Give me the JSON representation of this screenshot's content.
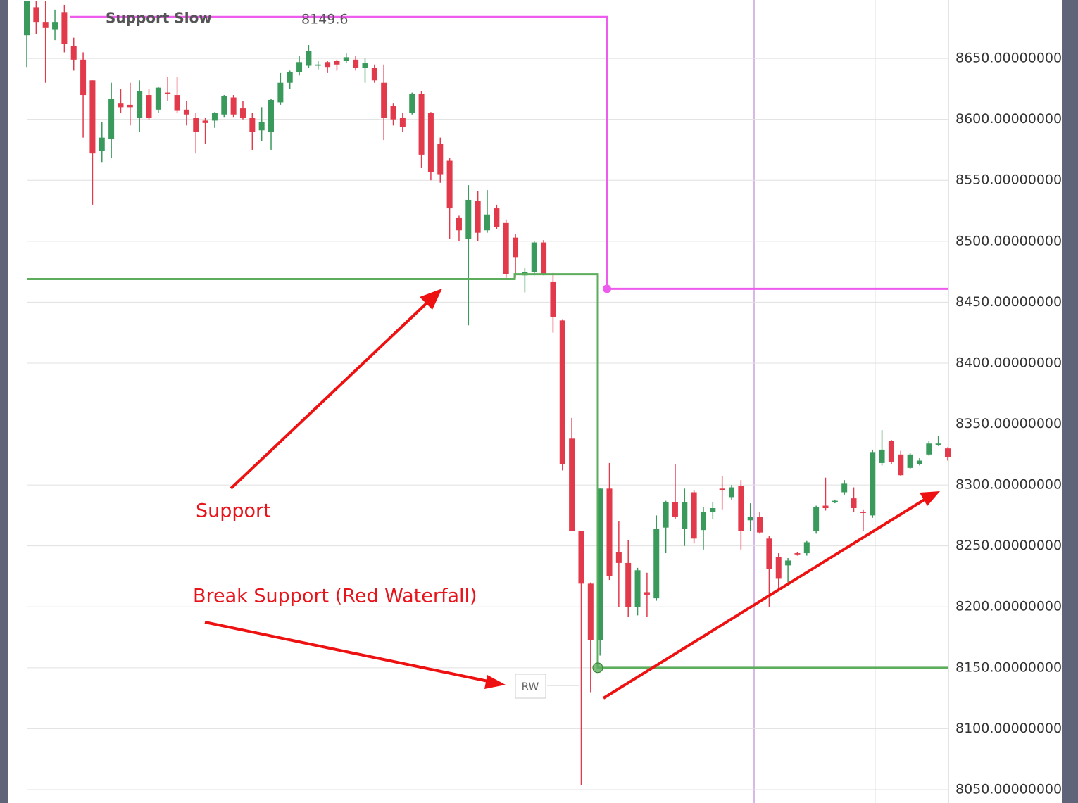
{
  "chart_data": {
    "type": "candlestick",
    "legend_label": "Support Slow",
    "legend_value": "8149.6",
    "annotations": [
      "Support",
      "Break Support (Red Waterfall)",
      "RW"
    ],
    "up_color": "#3a9a5c",
    "down_color": "#e2394b",
    "ylim": [
      8039,
      8698
    ],
    "yticks": [
      {
        "value": 8650,
        "label": "8650.00000000"
      },
      {
        "value": 8600,
        "label": "8600.00000000"
      },
      {
        "value": 8550,
        "label": "8550.00000000"
      },
      {
        "value": 8500,
        "label": "8500.00000000"
      },
      {
        "value": 8450,
        "label": "8450.00000000"
      },
      {
        "value": 8400,
        "label": "8400.00000000"
      },
      {
        "value": 8350,
        "label": "8350.00000000"
      },
      {
        "value": 8300,
        "label": "8300.00000000"
      },
      {
        "value": 8250,
        "label": "8250.00000000"
      },
      {
        "value": 8200,
        "label": "8200.00000000"
      },
      {
        "value": 8150,
        "label": "8150.00000000"
      },
      {
        "value": 8100,
        "label": "8100.00000000"
      },
      {
        "value": 8050,
        "label": "8050.00000000"
      }
    ],
    "grid": true,
    "open": [
      8669,
      8692,
      8680,
      8674,
      8688,
      8660,
      8649,
      8632,
      8574,
      8584,
      8613,
      8612,
      8601,
      8620,
      8608,
      8622,
      8620,
      8608,
      8601,
      8599,
      8599,
      8604,
      8618,
      8609,
      8601,
      8591,
      8590,
      8614,
      8630,
      8639,
      8644,
      8644,
      8647,
      8648,
      8648,
      8649,
      8642,
      8642,
      8630,
      8611,
      8601,
      8605,
      8621,
      8605,
      8580,
      8566,
      8519,
      8502,
      8533,
      8509,
      8527,
      8515,
      8503,
      8472,
      8475,
      8499,
      8467,
      8435,
      8338,
      8262,
      8219,
      8173,
      8297,
      8245,
      8236,
      8200,
      8212,
      8207,
      8265,
      8286,
      8264,
      8294,
      8263,
      8278,
      8297,
      8290,
      8299,
      8271,
      8274,
      8256,
      8241,
      8234,
      8244,
      8244,
      8262,
      8283,
      8286,
      8294,
      8289,
      8278,
      8275,
      8318,
      8336,
      8325,
      8314,
      8317,
      8325,
      8333,
      8330
    ],
    "high": [
      8697,
      8697,
      8697,
      8690,
      8694,
      8667,
      8655,
      8632,
      8598,
      8630,
      8625,
      8630,
      8632,
      8625,
      8627,
      8635,
      8635,
      8615,
      8605,
      8601,
      8606,
      8620,
      8620,
      8615,
      8605,
      8610,
      8617,
      8638,
      8640,
      8652,
      8661,
      8648,
      8648,
      8649,
      8654,
      8652,
      8650,
      8645,
      8645,
      8613,
      8605,
      8622,
      8623,
      8606,
      8585,
      8568,
      8521,
      8546,
      8541,
      8542,
      8530,
      8518,
      8506,
      8478,
      8500,
      8501,
      8474,
      8436,
      8355,
      8262,
      8220,
      8297,
      8318,
      8270,
      8255,
      8232,
      8228,
      8275,
      8287,
      8317,
      8297,
      8296,
      8282,
      8286,
      8307,
      8300,
      8304,
      8285,
      8278,
      8258,
      8244,
      8240,
      8245,
      8254,
      8283,
      8306,
      8288,
      8304,
      8298,
      8280,
      8329,
      8345,
      8337,
      8328,
      8326,
      8322,
      8336,
      8340,
      8331
    ],
    "low": [
      8643,
      8670,
      8630,
      8665,
      8655,
      8640,
      8585,
      8530,
      8565,
      8568,
      8605,
      8595,
      8590,
      8600,
      8605,
      8615,
      8605,
      8595,
      8572,
      8580,
      8593,
      8602,
      8602,
      8600,
      8575,
      8582,
      8575,
      8612,
      8625,
      8636,
      8642,
      8641,
      8638,
      8640,
      8646,
      8640,
      8630,
      8630,
      8583,
      8595,
      8590,
      8604,
      8560,
      8550,
      8548,
      8502,
      8500,
      8431,
      8500,
      8507,
      8510,
      8470,
      8470,
      8458,
      8472,
      8472,
      8425,
      8312,
      8262,
      8054,
      8130,
      8160,
      8222,
      8200,
      8192,
      8193,
      8192,
      8205,
      8244,
      8272,
      8250,
      8252,
      8247,
      8272,
      8280,
      8288,
      8247,
      8262,
      8260,
      8200,
      8215,
      8220,
      8242,
      8242,
      8260,
      8279,
      8285,
      8292,
      8278,
      8262,
      8273,
      8316,
      8317,
      8307,
      8313,
      8316,
      8324,
      8332,
      8320
    ],
    "close": [
      8697,
      8680,
      8675,
      8680,
      8662,
      8649,
      8620,
      8572,
      8585,
      8617,
      8610,
      8610,
      8623,
      8601,
      8626,
      8621,
      8607,
      8604,
      8590,
      8597,
      8605,
      8619,
      8604,
      8601,
      8590,
      8598,
      8616,
      8630,
      8639,
      8647,
      8656,
      8645,
      8643,
      8645,
      8651,
      8642,
      8646,
      8632,
      8601,
      8600,
      8594,
      8621,
      8571,
      8557,
      8555,
      8527,
      8509,
      8534,
      8507,
      8522,
      8512,
      8473,
      8487,
      8475,
      8499,
      8473,
      8438,
      8317,
      8262,
      8219,
      8173,
      8297,
      8225,
      8236,
      8200,
      8230,
      8210,
      8264,
      8286,
      8274,
      8286,
      8256,
      8278,
      8281,
      8296,
      8298,
      8262,
      8274,
      8261,
      8231,
      8223,
      8238,
      8243,
      8253,
      8282,
      8281,
      8287,
      8301,
      8281,
      8277,
      8327,
      8329,
      8319,
      8308,
      8325,
      8320,
      8334,
      8334,
      8323
    ],
    "levels": [
      {
        "color": "#5cad5c",
        "values": [
          8469,
          8473,
          8150
        ]
      },
      {
        "color": "#ee5cee",
        "values": [
          8684,
          8461
        ]
      }
    ]
  }
}
